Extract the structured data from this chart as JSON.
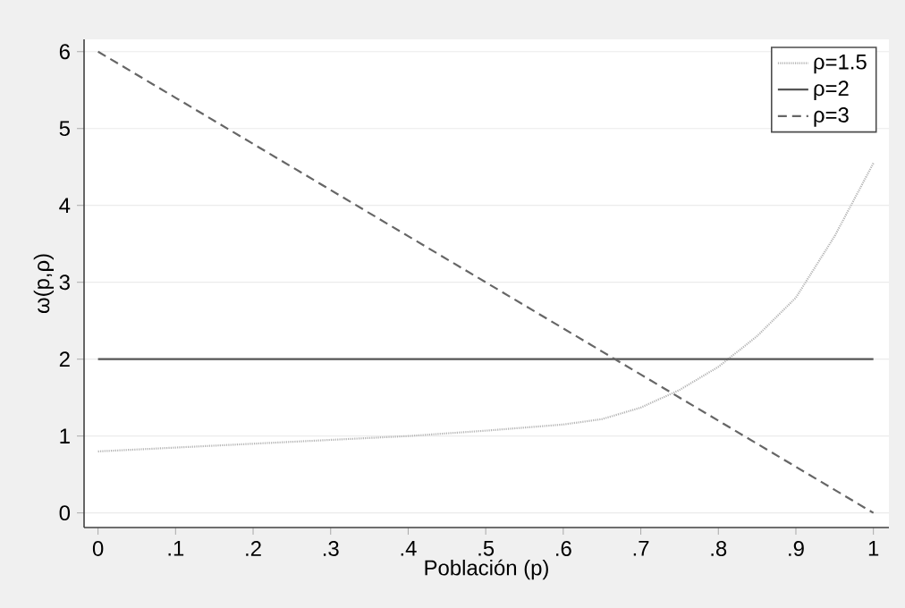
{
  "chart_data": {
    "type": "line",
    "xlabel": "Población (p)",
    "ylabel": "ω(p,ρ)",
    "x": [
      0,
      0.1,
      0.2,
      0.3,
      0.4,
      0.5,
      0.6,
      0.65,
      0.7,
      0.75,
      0.8,
      0.85,
      0.9,
      0.95,
      1
    ],
    "series": [
      {
        "name": "ρ=1.5",
        "color": "#b4b4b4",
        "line_style": "dotted",
        "values": [
          0.8,
          0.85,
          0.9,
          0.95,
          1.0,
          1.07,
          1.15,
          1.22,
          1.37,
          1.6,
          1.9,
          2.3,
          2.8,
          3.6,
          4.55
        ]
      },
      {
        "name": "ρ=2",
        "color": "#555555",
        "line_style": "solid",
        "values": [
          2,
          2,
          2,
          2,
          2,
          2,
          2,
          2,
          2,
          2,
          2,
          2,
          2,
          2,
          2
        ]
      },
      {
        "name": "ρ=3",
        "color": "#666666",
        "line_style": "dashed",
        "values": [
          6,
          5.4,
          4.8,
          4.2,
          3.6,
          3,
          2.4,
          2.1,
          1.8,
          1.5,
          1.2,
          0.9,
          0.6,
          0.3,
          0
        ]
      }
    ],
    "xlim": [
      -0.018,
      1.02
    ],
    "ylim": [
      -0.19,
      6.16
    ],
    "xticks": [
      0,
      {
        "value": 0.1,
        "label": ".1"
      },
      {
        "value": 0.2,
        "label": ".2"
      },
      {
        "value": 0.3,
        "label": ".3"
      },
      {
        "value": 0.4,
        "label": ".4"
      },
      {
        "value": 0.5,
        "label": ".5"
      },
      {
        "value": 0.6,
        "label": ".6"
      },
      {
        "value": 0.7,
        "label": ".7"
      },
      {
        "value": 0.8,
        "label": ".8"
      },
      {
        "value": 0.9,
        "label": ".9"
      },
      1
    ],
    "yticks": [
      0,
      1,
      2,
      3,
      4,
      5,
      6
    ],
    "grid": "y",
    "legend": "top right",
    "marker": "none"
  }
}
